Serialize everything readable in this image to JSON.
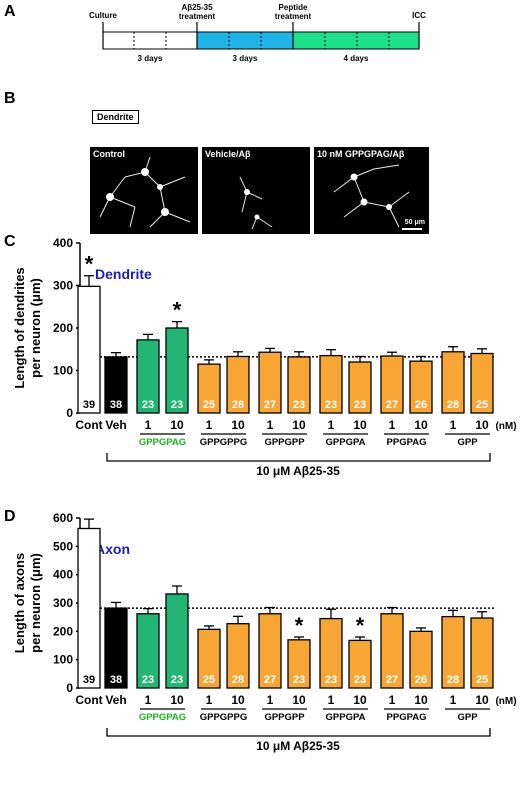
{
  "panels": {
    "a": "A",
    "b": "B",
    "c": "C",
    "d": "D"
  },
  "timeline": {
    "events": [
      "Culture",
      "Aβ25-35\ntreatment",
      "Peptide\ntreatment",
      "ICC"
    ],
    "durations": [
      "3 days",
      "3 days",
      "4 days"
    ],
    "colors": [
      "#ffffff",
      "#1fb4e6",
      "#1ee08a"
    ]
  },
  "images": {
    "box_label": "Dendrite",
    "labels": [
      "Control",
      "Vehicle/Aβ",
      "10 nM GPPGPAG/Aβ"
    ],
    "scale_bar": "50 μm"
  },
  "shared": {
    "bar_names": [
      "Cont",
      "Veh"
    ],
    "conc_labels": [
      "1",
      "10",
      "1",
      "10",
      "1",
      "10",
      "1",
      "10",
      "1",
      "10",
      "1",
      "10"
    ],
    "unit": "(nM)",
    "groups": [
      "GPPGPAG",
      "GPPGPPG",
      "GPPGPP",
      "GPPGPA",
      "PPGPAG",
      "GPP"
    ],
    "treatment": "10 μM Aβ25-35",
    "colors": {
      "cont": "#ffffff",
      "veh": "#000000",
      "gppgpag": "#22b573",
      "others": "#f7a636",
      "gppgpag_label": "#1bb31b"
    }
  },
  "chart_data": [
    {
      "type": "bar",
      "title": "Dendrite",
      "ylabel": "Length of dendrites per neuron (μm)",
      "ylim": [
        0,
        400
      ],
      "yticks": [
        0,
        100,
        200,
        300,
        400
      ],
      "categories": [
        "Cont",
        "Veh",
        "GPPGPAG 1",
        "GPPGPAG 10",
        "GPPGPPG 1",
        "GPPGPPG 10",
        "GPPGPP 1",
        "GPPGPP 10",
        "GPPGPA 1",
        "GPPGPA 10",
        "PPGPAG 1",
        "PPGPAG 10",
        "GPP 1",
        "GPP 10"
      ],
      "values": [
        298,
        132,
        172,
        200,
        115,
        133,
        143,
        132,
        135,
        120,
        134,
        122,
        144,
        140
      ],
      "errors": [
        25,
        10,
        13,
        15,
        10,
        11,
        9,
        12,
        14,
        13,
        9,
        11,
        12,
        11
      ],
      "n": [
        "39",
        "38",
        "23",
        "23",
        "25",
        "28",
        "27",
        "23",
        "23",
        "23",
        "27",
        "26",
        "28",
        "25"
      ],
      "significance": [
        "*",
        "",
        "",
        "*",
        "",
        "",
        "",
        "",
        "",
        "",
        "",
        "",
        "",
        ""
      ],
      "reference_line": 132
    },
    {
      "type": "bar",
      "title": "Axon",
      "ylabel": "Length of axons per neuron (μm)",
      "ylim": [
        0,
        600
      ],
      "yticks": [
        0,
        100,
        200,
        300,
        400,
        500,
        600
      ],
      "categories": [
        "Cont",
        "Veh",
        "GPPGPAG 1",
        "GPPGPAG 10",
        "GPPGPPG 1",
        "GPPGPPG 10",
        "GPPGPP 1",
        "GPPGPP 10",
        "GPPGPA 1",
        "GPPGPA 10",
        "PPGPAG 1",
        "PPGPAG 10",
        "GPP 1",
        "GPP 10"
      ],
      "values": [
        563,
        282,
        262,
        332,
        207,
        227,
        262,
        170,
        245,
        168,
        262,
        200,
        252,
        247
      ],
      "errors": [
        33,
        20,
        18,
        28,
        12,
        26,
        22,
        10,
        33,
        12,
        22,
        12,
        22,
        22
      ],
      "n": [
        "39",
        "38",
        "23",
        "23",
        "25",
        "28",
        "27",
        "23",
        "23",
        "23",
        "27",
        "26",
        "28",
        "25"
      ],
      "significance": [
        "*",
        "",
        "",
        "",
        "",
        "",
        "",
        "*",
        "",
        "*",
        "",
        "",
        "",
        ""
      ],
      "reference_line": 282
    }
  ]
}
